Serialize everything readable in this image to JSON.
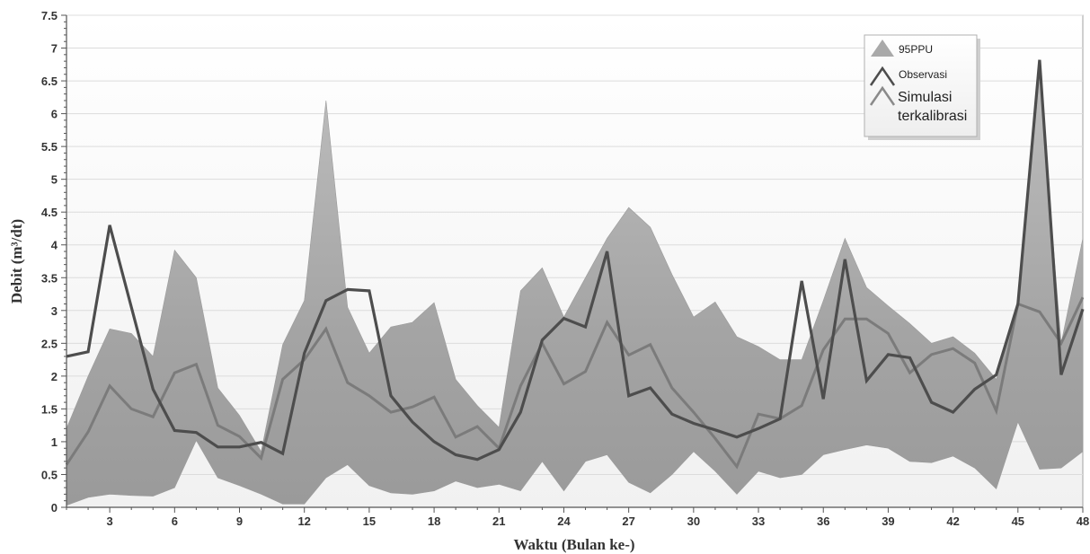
{
  "chart_data": {
    "type": "area",
    "xlabel": "Waktu (Bulan ke-)",
    "ylabel": "Debit (m³/dt)",
    "xlim": [
      1,
      48
    ],
    "ylim": [
      0,
      7.5
    ],
    "xticks": [
      3,
      6,
      9,
      12,
      15,
      18,
      21,
      24,
      27,
      30,
      33,
      36,
      39,
      42,
      45,
      48
    ],
    "yticks": [
      0,
      0.5,
      1,
      1.5,
      2,
      2.5,
      3,
      3.5,
      4,
      4.5,
      5,
      5.5,
      6,
      6.5,
      7,
      7.5
    ],
    "grid": true,
    "legend_position": "top-right",
    "x": [
      1,
      2,
      3,
      4,
      5,
      6,
      7,
      8,
      9,
      10,
      11,
      12,
      13,
      14,
      15,
      16,
      17,
      18,
      19,
      20,
      21,
      22,
      23,
      24,
      25,
      26,
      27,
      28,
      29,
      30,
      31,
      32,
      33,
      34,
      35,
      36,
      37,
      38,
      39,
      40,
      41,
      42,
      43,
      44,
      45,
      46,
      47,
      48
    ],
    "band": {
      "name": "95PPU",
      "color": "#a9a9a9",
      "upper": [
        1.2,
        2.0,
        2.72,
        2.65,
        2.3,
        3.92,
        3.5,
        1.82,
        1.4,
        0.85,
        2.48,
        3.15,
        6.2,
        3.05,
        2.35,
        2.75,
        2.82,
        3.12,
        1.95,
        1.55,
        1.22,
        3.3,
        3.65,
        2.9,
        3.5,
        4.1,
        4.57,
        4.27,
        3.55,
        2.9,
        3.13,
        2.6,
        2.45,
        2.25,
        2.25,
        3.15,
        4.1,
        3.35,
        3.07,
        2.8,
        2.5,
        2.6,
        2.35,
        1.95,
        3.12,
        6.6,
        2.5,
        4.1
      ],
      "lower": [
        0.03,
        0.15,
        0.2,
        0.18,
        0.17,
        0.3,
        1.02,
        0.45,
        0.33,
        0.2,
        0.05,
        0.05,
        0.45,
        0.65,
        0.33,
        0.22,
        0.2,
        0.25,
        0.4,
        0.3,
        0.35,
        0.25,
        0.7,
        0.25,
        0.7,
        0.8,
        0.38,
        0.22,
        0.5,
        0.85,
        0.55,
        0.2,
        0.55,
        0.45,
        0.5,
        0.8,
        0.88,
        0.95,
        0.9,
        0.7,
        0.68,
        0.78,
        0.6,
        0.28,
        1.3,
        0.58,
        0.6,
        0.85
      ]
    },
    "series": [
      {
        "name": "Observasi",
        "color": "#4d4d4d",
        "values": [
          2.3,
          2.37,
          4.3,
          3.05,
          1.8,
          1.17,
          1.14,
          0.92,
          0.92,
          0.99,
          0.82,
          2.35,
          3.15,
          3.32,
          3.3,
          1.7,
          1.3,
          1.0,
          0.8,
          0.73,
          0.88,
          1.45,
          2.55,
          2.88,
          2.75,
          3.9,
          1.7,
          1.82,
          1.42,
          1.28,
          1.18,
          1.07,
          1.2,
          1.35,
          3.45,
          1.65,
          3.78,
          1.93,
          2.33,
          2.28,
          1.6,
          1.45,
          1.8,
          2.02,
          3.1,
          6.82,
          2.02,
          3.02
        ]
      },
      {
        "name": "Simulasi terkalibrasi",
        "color": "#7b7b7b",
        "values": [
          0.65,
          1.15,
          1.85,
          1.5,
          1.38,
          2.05,
          2.18,
          1.25,
          1.08,
          0.75,
          1.95,
          2.25,
          2.72,
          1.9,
          1.7,
          1.45,
          1.53,
          1.68,
          1.07,
          1.23,
          0.9,
          1.85,
          2.5,
          1.88,
          2.07,
          2.82,
          2.32,
          2.48,
          1.82,
          1.45,
          1.05,
          0.62,
          1.42,
          1.35,
          1.55,
          2.4,
          2.87,
          2.87,
          2.65,
          2.05,
          2.33,
          2.42,
          2.2,
          1.47,
          3.1,
          2.98,
          2.5,
          3.2
        ]
      }
    ]
  }
}
